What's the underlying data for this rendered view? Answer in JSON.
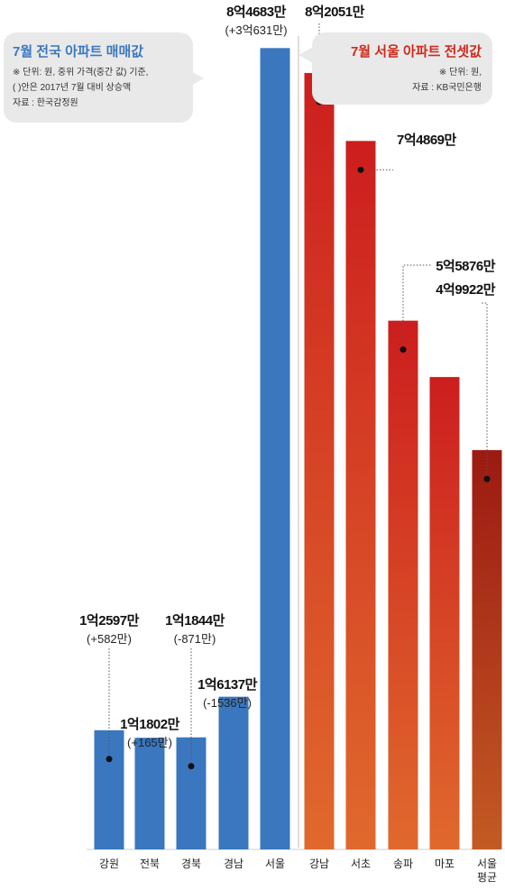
{
  "colors": {
    "blue": "#3a77be",
    "red_top": "#cc1e1e",
    "red_bottom": "#e0692d",
    "avg_top": "#9c1a12",
    "avg_bottom": "#c35a23",
    "bubble_bg": "#e9e9e9"
  },
  "left_box": {
    "title": "7월 전국 아파트 매매값",
    "note_line1": "※ 단위: 원, 중위 가격(중간 값) 기준,",
    "note_line2": "( )안은 2017년 7월 대비 상승액",
    "note_line3": "자료 : 한국감정원"
  },
  "right_box": {
    "title": "7월 서울 아파트 전셋값",
    "note_line1": "※ 단위: 원,",
    "note_line2": "자료 : KB국민은행"
  },
  "chart_data": {
    "type": "bar",
    "unit": "원",
    "categories": [
      "강원",
      "전북",
      "경북",
      "경남",
      "서울",
      "강남",
      "서초",
      "송파",
      "마포",
      "서울평균"
    ],
    "groups": [
      {
        "title": "7월 전국 아파트 매매값",
        "categories": [
          "강원",
          "전북",
          "경북",
          "경남",
          "서울"
        ]
      },
      {
        "title": "7월 서울 아파트 전셋값",
        "categories": [
          "강남",
          "서초",
          "송파",
          "마포",
          "서울평균"
        ]
      }
    ],
    "values": [
      125970000,
      118020000,
      118440000,
      161370000,
      846830000,
      820510000,
      748690000,
      558760000,
      499220000,
      422000000
    ],
    "value_labels": [
      "1억2597만",
      "1억1802만",
      "1억1844만",
      "1억6137만",
      "8억4683만",
      "8억2051만",
      "7억4869만",
      "5억5876만",
      "4억9922만",
      ""
    ],
    "change_labels": [
      "(+582만)",
      "(+165만)",
      "(-871만)",
      "(-1536만)",
      "(+3억631만)",
      "",
      "",
      "",
      "",
      ""
    ],
    "ylim": [
      0,
      850000000
    ]
  }
}
